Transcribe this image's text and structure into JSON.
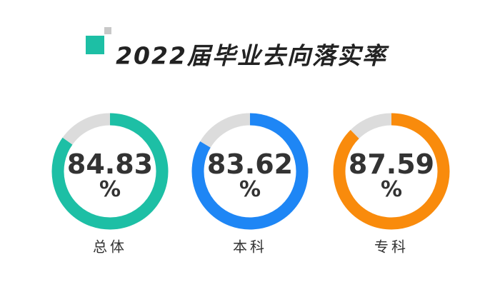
{
  "chart_data": {
    "type": "donut",
    "title": "2022届毕业去向落实率",
    "categories": [
      "总体",
      "本科",
      "专科"
    ],
    "values": [
      84.83,
      83.62,
      87.59
    ],
    "value_labels": [
      "84.83%",
      "83.62%",
      "87.59%"
    ],
    "colors": [
      "#1dbfa5",
      "#1e86f5",
      "#f98b0c"
    ],
    "ylim": [
      0,
      100
    ]
  }
}
